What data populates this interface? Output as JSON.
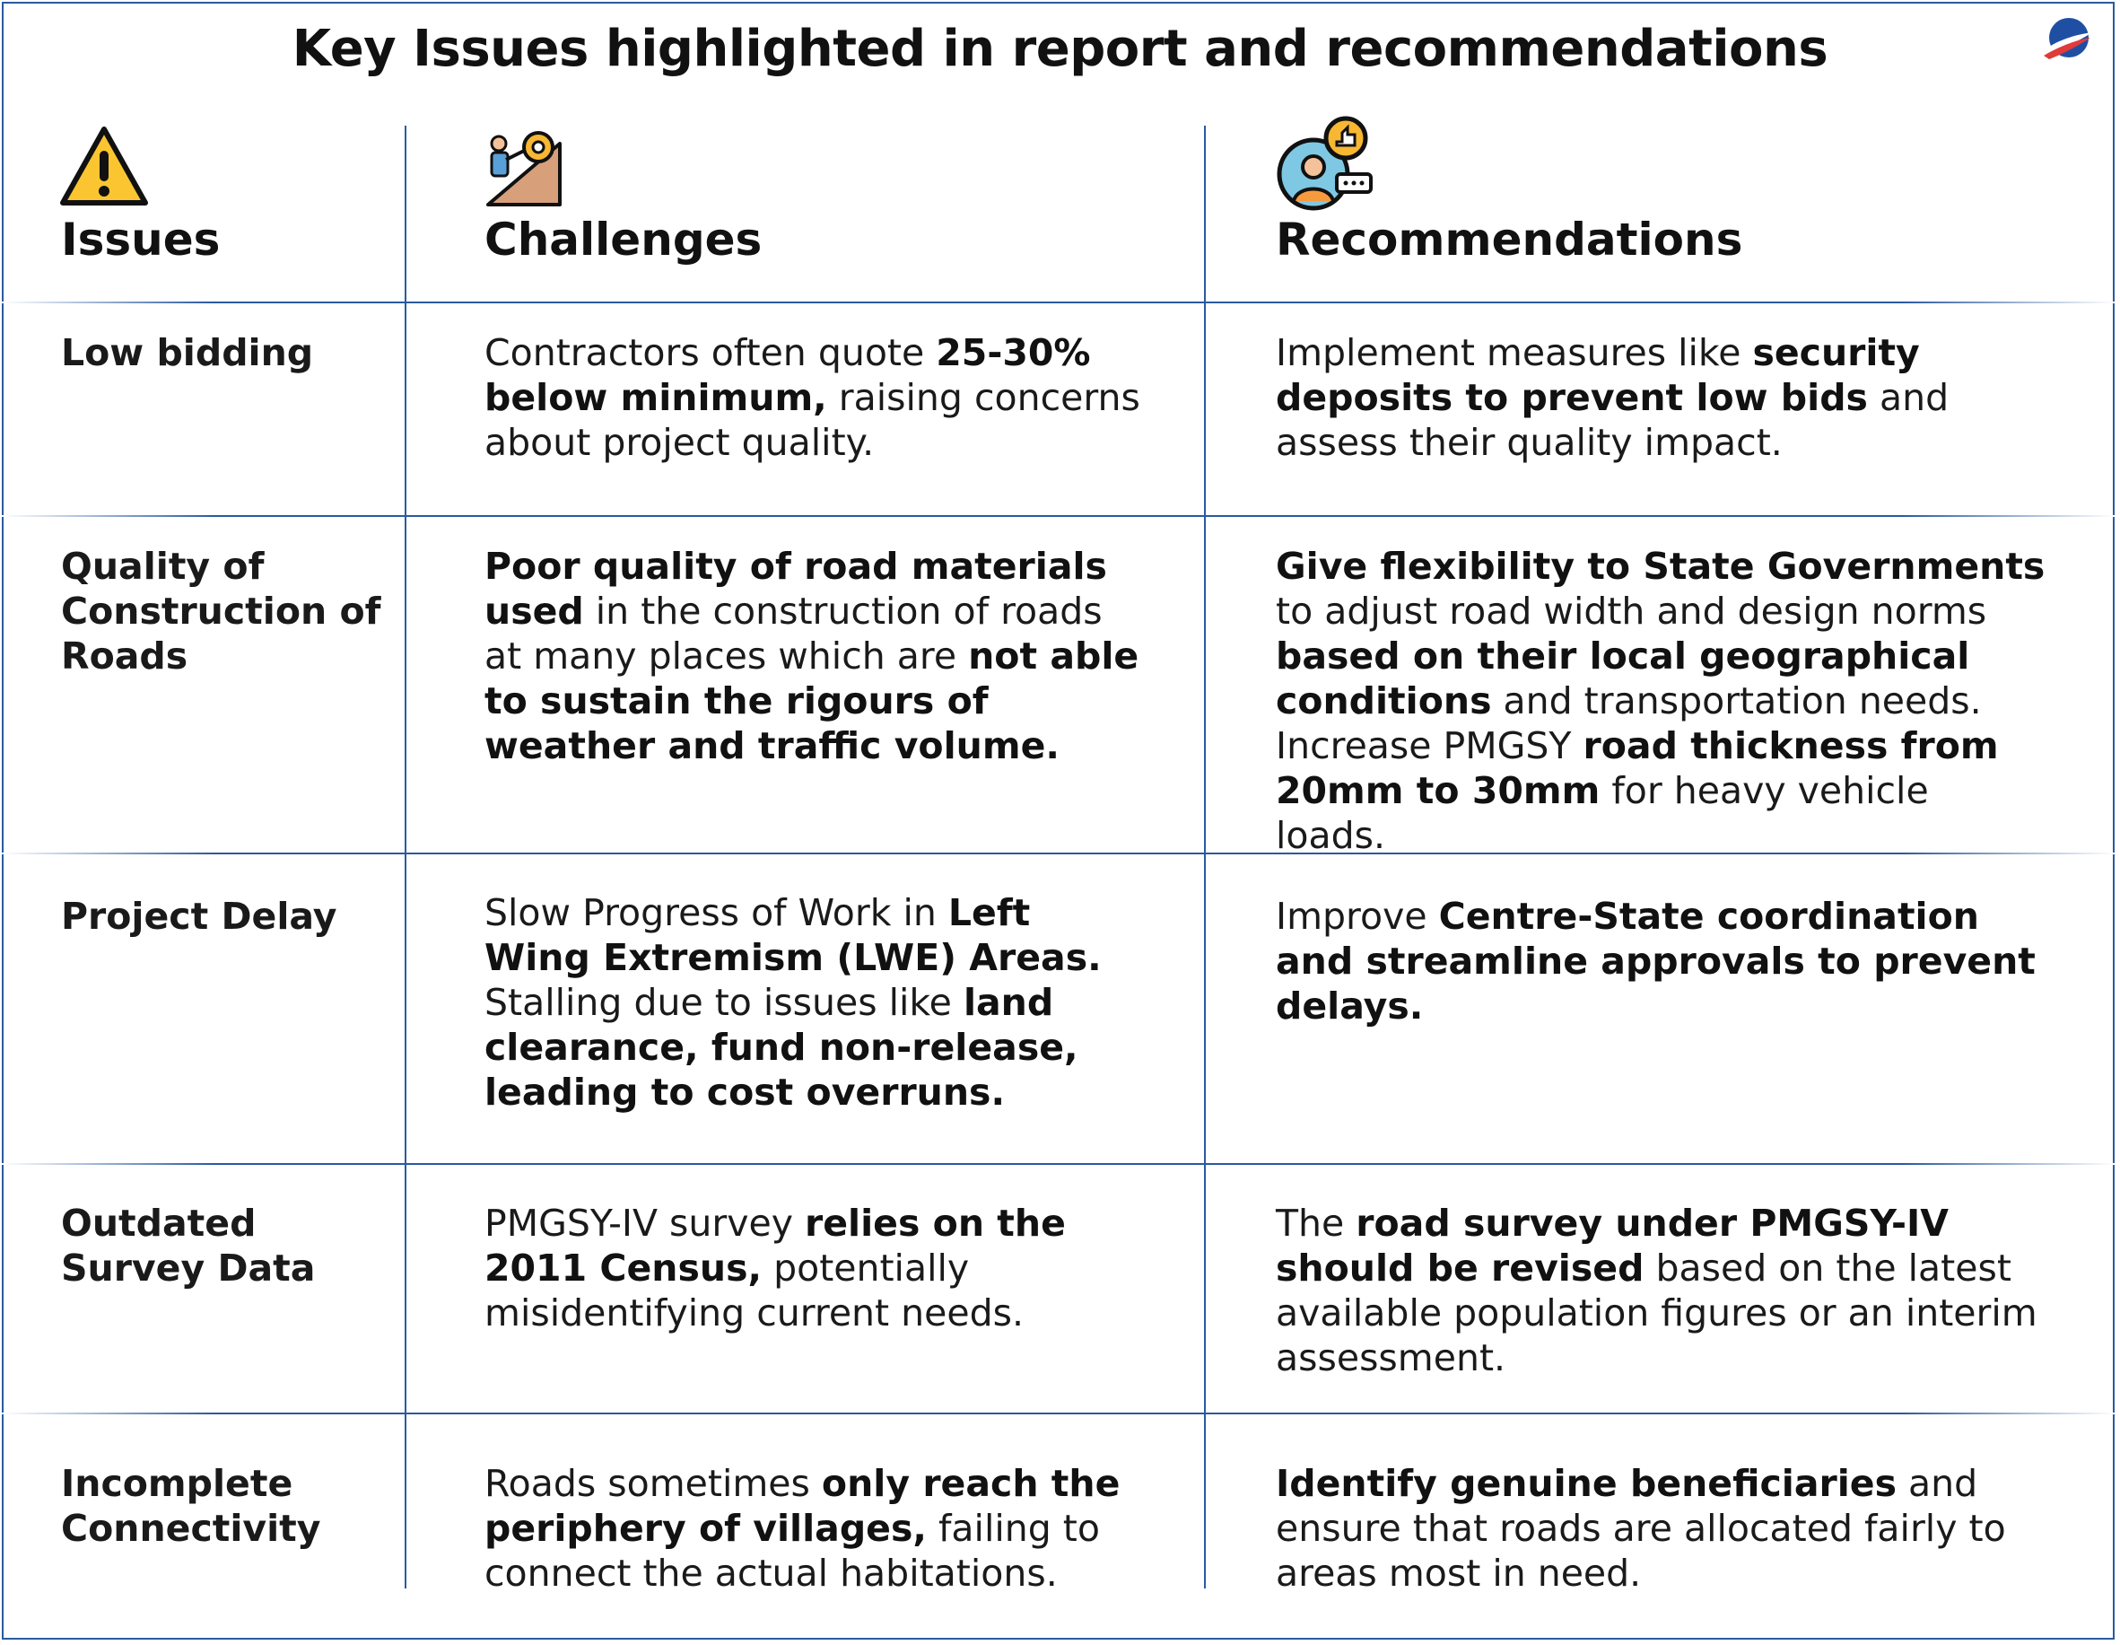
{
  "title": "Key Issues highlighted in report and recommendations",
  "colors": {
    "border": "#2a5aa0",
    "warning": "#fbc531",
    "logo_blue": "#1f4fa3",
    "logo_red": "#e03b3b"
  },
  "headers": {
    "issues": "Issues",
    "challenges": "Challenges",
    "recommendations": "Recommendations",
    "icons": [
      "warning-icon",
      "construction-worker-icon",
      "feedback-user-icon"
    ]
  },
  "rows": [
    {
      "issue": "Low bidding",
      "challenge": [
        {
          "t": "Contractors often quote ",
          "b": false
        },
        {
          "t": "25-30% below minimum,",
          "b": true
        },
        {
          "t": " raising concerns about project quality.",
          "b": false
        }
      ],
      "recommendation": [
        {
          "t": "Implement measures like ",
          "b": false
        },
        {
          "t": "security deposits to prevent low bids",
          "b": true
        },
        {
          "t": " and assess their quality impact.",
          "b": false
        }
      ]
    },
    {
      "issue": "Quality of Construction of Roads",
      "challenge": [
        {
          "t": "Poor quality of road materials used",
          "b": true
        },
        {
          "t": " in the construction of roads at many places which are ",
          "b": false
        },
        {
          "t": "not able to sustain the rigours of weather and traffic volume.",
          "b": true
        }
      ],
      "recommendation": [
        {
          "t": "Give flexibility to State Governments",
          "b": true
        },
        {
          "t": " to adjust road width and design norms ",
          "b": false
        },
        {
          "t": "based on their local geographical conditions",
          "b": true
        },
        {
          "t": " and transportation needs. Increase PMGSY ",
          "b": false
        },
        {
          "t": "road thickness from 20mm to 30mm",
          "b": true
        },
        {
          "t": " for heavy vehicle loads.",
          "b": false
        }
      ]
    },
    {
      "issue": "Project Delay",
      "challenge": [
        {
          "t": "Slow Progress of Work in ",
          "b": false
        },
        {
          "t": "Left Wing Extremism (LWE) Areas.",
          "b": true
        },
        {
          "t": " Stalling due to issues like ",
          "b": false
        },
        {
          "t": "land clearance, fund non-release, leading to cost overruns.",
          "b": true
        }
      ],
      "recommendation": [
        {
          "t": "Improve ",
          "b": false
        },
        {
          "t": "Centre-State coordination and streamline approvals to prevent delays.",
          "b": true
        }
      ]
    },
    {
      "issue": "Outdated Survey Data",
      "challenge": [
        {
          "t": "PMGSY-IV survey ",
          "b": false
        },
        {
          "t": "relies on the 2011 Census,",
          "b": true
        },
        {
          "t": " potentially misidentifying current needs.",
          "b": false
        }
      ],
      "recommendation": [
        {
          "t": "The ",
          "b": false
        },
        {
          "t": "road survey under PMGSY-IV should be revised",
          "b": true
        },
        {
          "t": " based on the latest available population figures or an interim assessment.",
          "b": false
        }
      ]
    },
    {
      "issue": "Incomplete Connectivity",
      "challenge": [
        {
          "t": "Roads sometimes ",
          "b": false
        },
        {
          "t": "only reach the periphery of villages,",
          "b": true
        },
        {
          "t": " failing to connect the actual habitations.",
          "b": false
        }
      ],
      "recommendation": [
        {
          "t": "Identify genuine beneficiaries",
          "b": true
        },
        {
          "t": " and ensure that roads are allocated fairly to areas most in need.",
          "b": false
        }
      ]
    }
  ]
}
